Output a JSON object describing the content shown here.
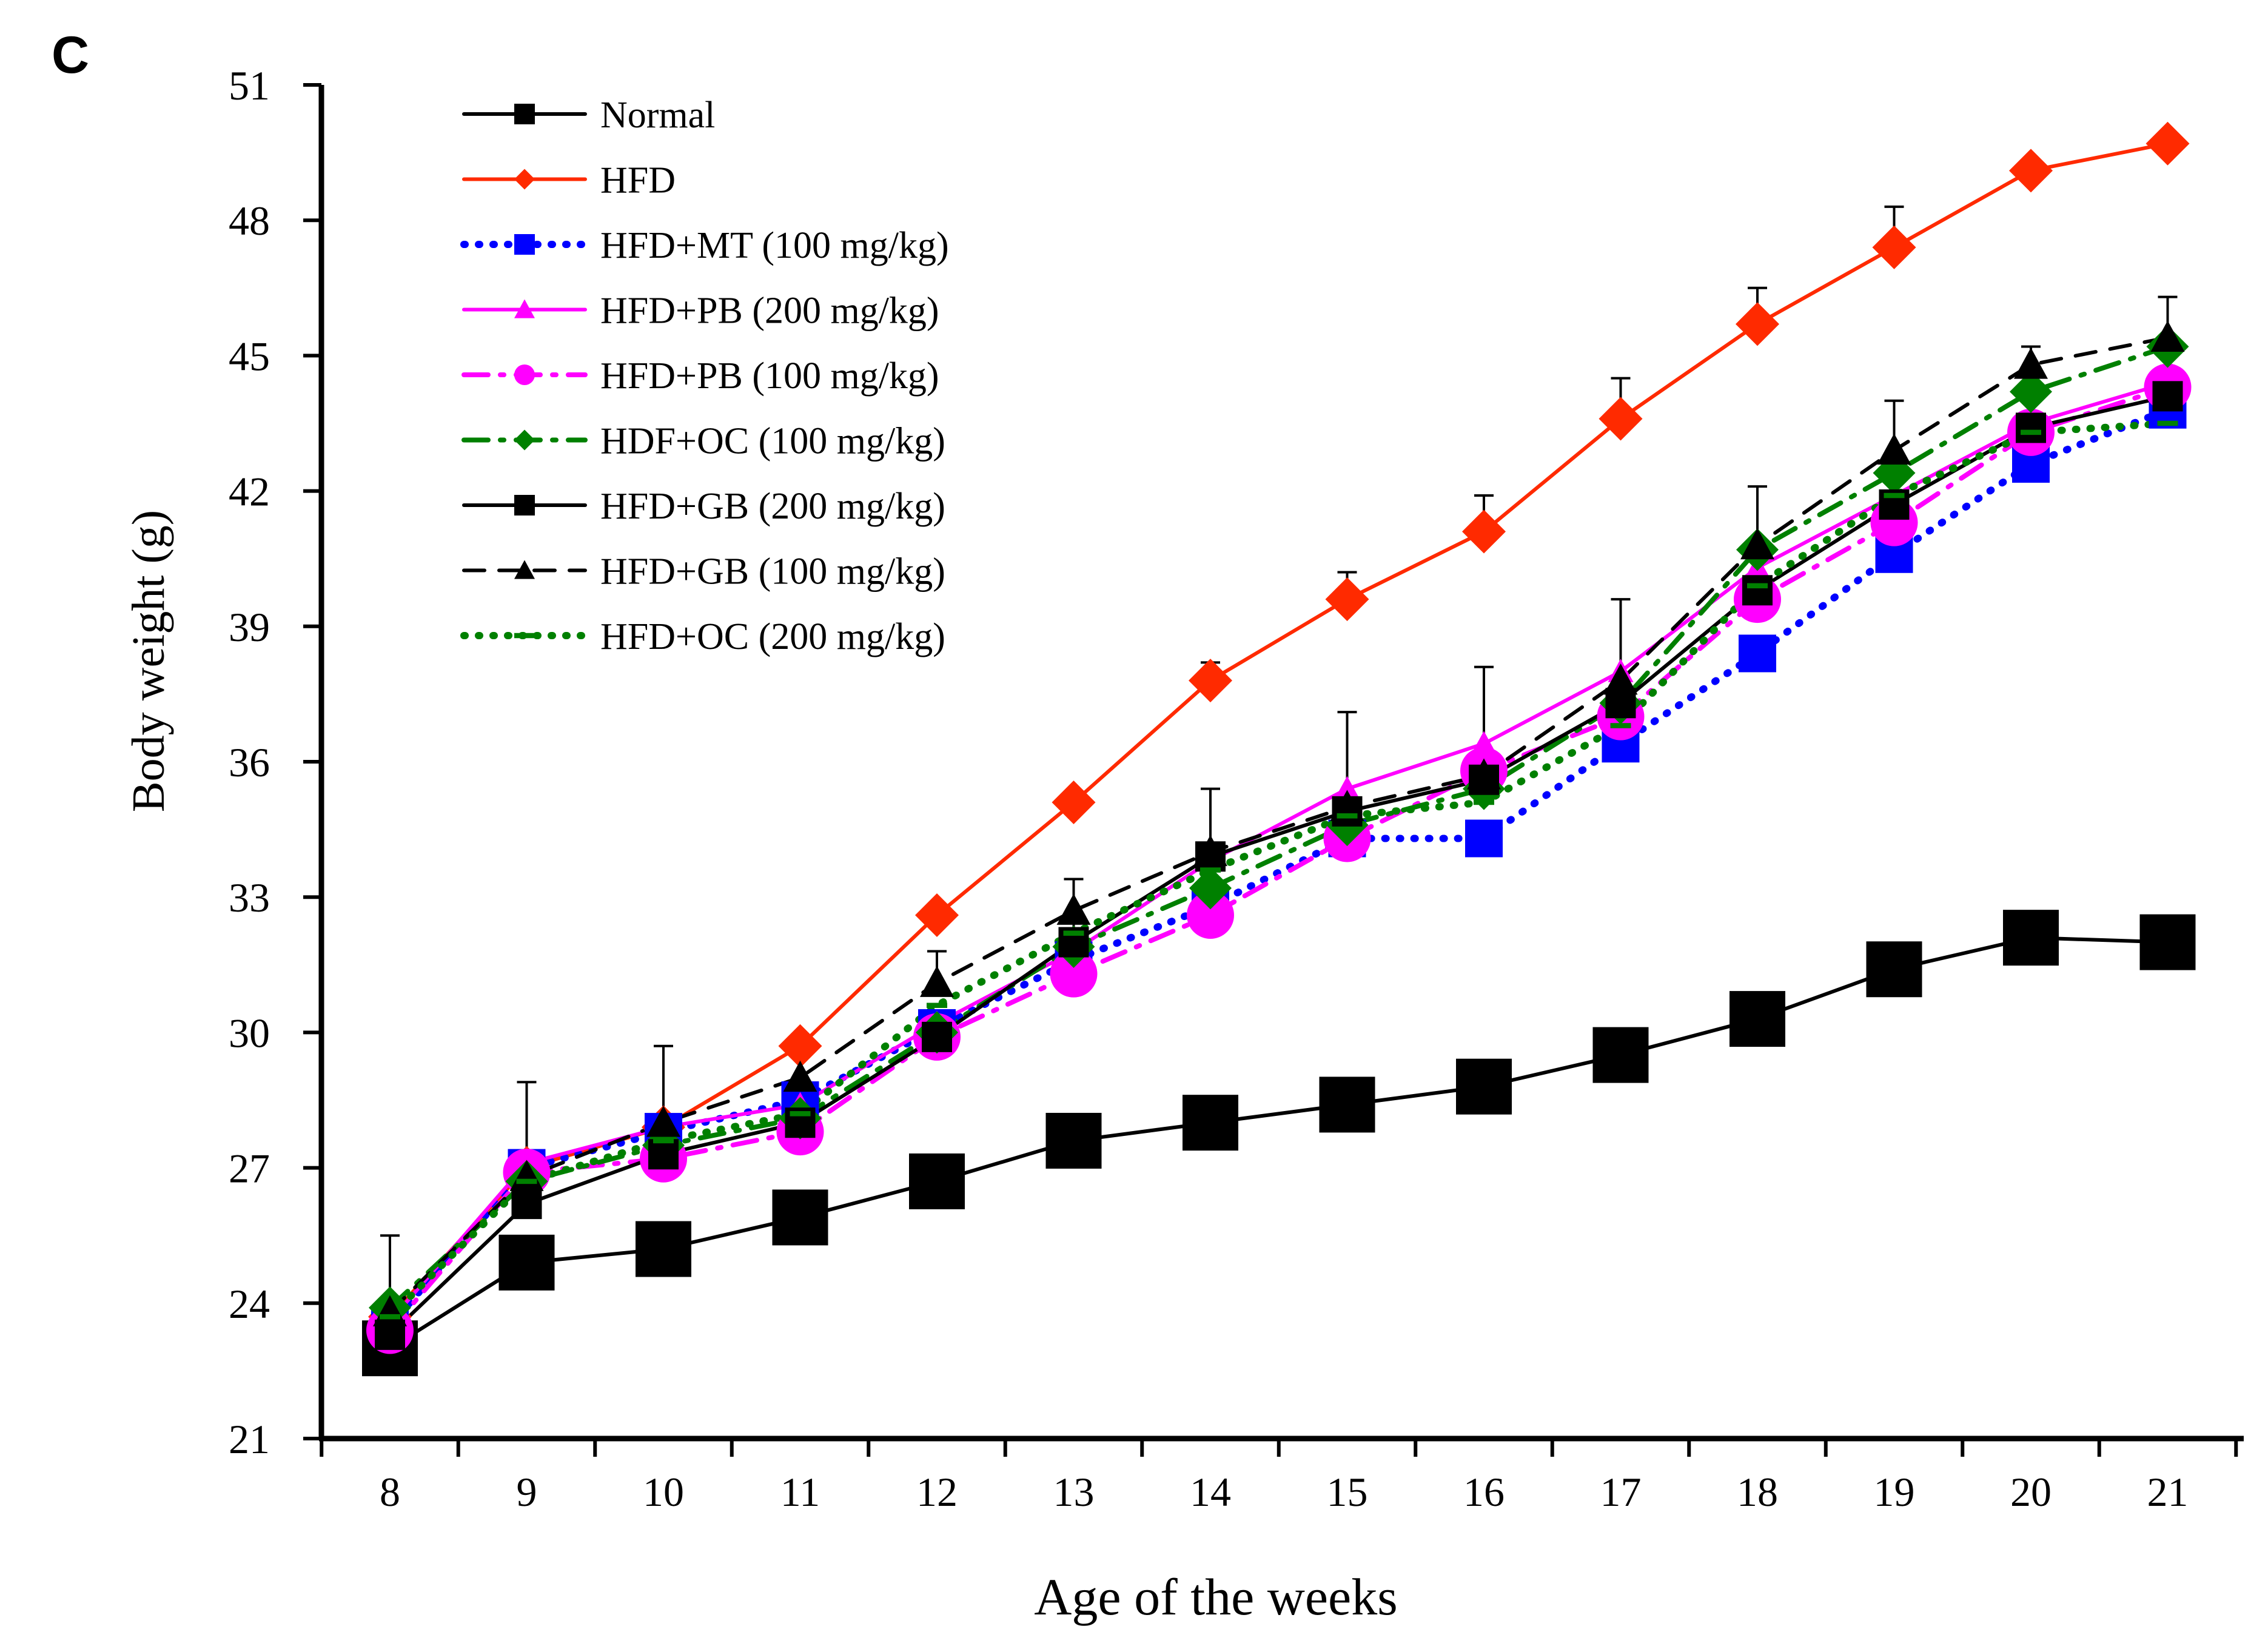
{
  "panel_label": "C",
  "chart_data": {
    "type": "line",
    "title": "",
    "xlabel": "Age of the weeks",
    "ylabel": "Body  weight (g)",
    "categories": [
      8,
      9,
      10,
      11,
      12,
      13,
      14,
      15,
      16,
      17,
      18,
      19,
      20,
      21
    ],
    "ylim": [
      21,
      51
    ],
    "yticks": [
      21,
      24,
      27,
      30,
      33,
      36,
      39,
      42,
      45,
      48,
      51
    ],
    "legend_position": "top-left",
    "series": [
      {
        "name": "Normal",
        "color": "#000000",
        "line_style": "solid",
        "marker": "square",
        "values": [
          23.0,
          24.9,
          25.2,
          25.9,
          26.7,
          27.6,
          28.0,
          28.4,
          28.8,
          29.5,
          30.3,
          31.4,
          32.1,
          32.0
        ],
        "errors": [
          1.0,
          0.5,
          0,
          0,
          0,
          0,
          0,
          0,
          0,
          0,
          0,
          0,
          0,
          0
        ]
      },
      {
        "name": "HFD",
        "color": "#ff2a00",
        "line_style": "solid",
        "marker": "diamond",
        "values": [
          23.7,
          27.0,
          27.9,
          29.7,
          32.6,
          35.1,
          37.8,
          39.6,
          41.1,
          43.6,
          45.7,
          47.4,
          49.1,
          49.7
        ],
        "errors": [
          0,
          0,
          0,
          0,
          0,
          0,
          0.4,
          0.6,
          0.8,
          0.9,
          0.8,
          0.9,
          0,
          0
        ]
      },
      {
        "name": "HFD+MT (100 mg/kg)",
        "color": "#0000ff",
        "line_style": "dotted",
        "marker": "square",
        "values": [
          23.5,
          27.0,
          27.8,
          28.5,
          30.1,
          31.6,
          32.8,
          34.3,
          34.3,
          36.4,
          38.4,
          40.6,
          42.6,
          43.8
        ],
        "errors": [
          0,
          0,
          0,
          0,
          0,
          0,
          0,
          0,
          0,
          0,
          0,
          0,
          0.9,
          0
        ]
      },
      {
        "name": "HFD+PB (200 mg/kg)",
        "color": "#ff00ff",
        "line_style": "solid",
        "marker": "triangle",
        "values": [
          23.6,
          27.1,
          27.9,
          28.4,
          30.2,
          31.8,
          33.8,
          35.4,
          36.4,
          38.0,
          40.3,
          41.9,
          43.5,
          44.4
        ],
        "errors": [
          0,
          0,
          0,
          0,
          0,
          0,
          0,
          0,
          0,
          0,
          0,
          0,
          0,
          0
        ]
      },
      {
        "name": "HFD+PB (100 mg/kg)",
        "color": "#ff00ff",
        "line_style": "dashdot",
        "marker": "circle",
        "values": [
          23.4,
          26.9,
          27.2,
          27.8,
          29.9,
          31.3,
          32.6,
          34.3,
          35.8,
          37.0,
          39.6,
          41.3,
          43.3,
          44.3
        ],
        "errors": [
          0,
          0,
          0.9,
          1.0,
          0,
          1.2,
          0,
          0,
          0,
          0,
          0,
          0,
          0,
          0
        ]
      },
      {
        "name": "HDF+OC (100 mg/kg)",
        "color": "#008000",
        "line_style": "dashdot",
        "marker": "diamond",
        "values": [
          23.9,
          26.7,
          27.5,
          28.1,
          30.0,
          31.9,
          33.2,
          34.6,
          35.4,
          37.3,
          40.7,
          42.4,
          44.2,
          45.2
        ],
        "errors": [
          0,
          0,
          0,
          0,
          0,
          0,
          0,
          0,
          0,
          0,
          0,
          0,
          0,
          0
        ]
      },
      {
        "name": "HFD+GB (200 mg/kg)",
        "color": "#000000",
        "line_style": "solid",
        "marker": "square",
        "values": [
          23.3,
          26.2,
          27.3,
          28.0,
          29.9,
          32.0,
          33.9,
          34.9,
          35.6,
          37.3,
          39.8,
          41.7,
          43.4,
          44.1
        ],
        "errors": [
          0,
          0,
          0,
          0,
          0,
          0,
          0,
          0,
          0,
          0,
          0,
          0,
          0,
          0
        ]
      },
      {
        "name": "HFD+GB (100 mg/kg)",
        "color": "#000000",
        "line_style": "dashed",
        "marker": "triangle",
        "values": [
          23.8,
          26.8,
          28.0,
          29.0,
          31.1,
          32.7,
          34.0,
          35.0,
          35.7,
          37.8,
          40.8,
          42.9,
          44.8,
          45.4
        ],
        "errors": [
          1.7,
          2.1,
          1.7,
          0,
          0.7,
          0.7,
          1.4,
          2.1,
          2.4,
          1.8,
          1.3,
          1.1,
          0.4,
          0.9
        ]
      },
      {
        "name": "HFD+OC (200 mg/kg)",
        "color": "#008000",
        "line_style": "dotted",
        "marker": "dash",
        "values": [
          23.7,
          26.7,
          27.6,
          28.2,
          30.6,
          32.2,
          33.6,
          34.8,
          35.1,
          36.8,
          39.9,
          41.9,
          43.3,
          43.5
        ],
        "errors": [
          0,
          0,
          0,
          0,
          0,
          0,
          0,
          0,
          0,
          0,
          0,
          0,
          0,
          0
        ]
      }
    ]
  }
}
